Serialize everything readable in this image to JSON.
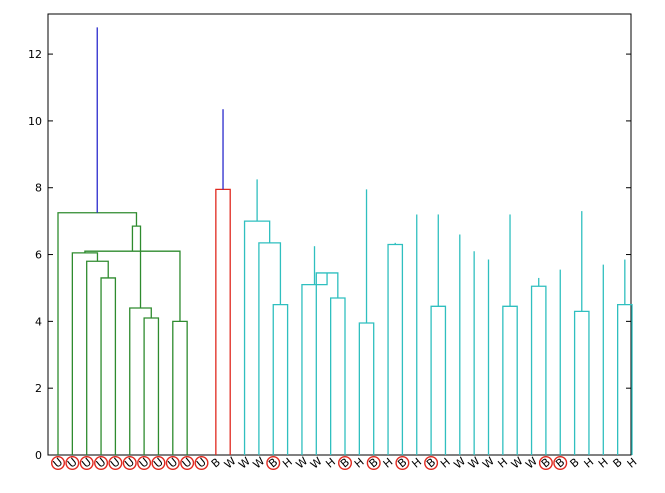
{
  "chart_data": {
    "type": "dendrogram",
    "title": "",
    "xlabel": "",
    "ylabel": "",
    "ylim": [
      0,
      13.2
    ],
    "y_ticks": [
      0,
      2,
      4,
      6,
      8,
      10,
      12
    ],
    "grid": false,
    "leaf_labels": [
      "U",
      "U",
      "U",
      "U",
      "U",
      "U",
      "U",
      "U",
      "U",
      "U",
      "U",
      "B",
      "W",
      "W",
      "W",
      "B",
      "H",
      "W",
      "W",
      "H",
      "B",
      "H",
      "B",
      "H",
      "B",
      "H",
      "B",
      "H",
      "W",
      "W",
      "W",
      "H",
      "W",
      "W",
      "B",
      "B",
      "B",
      "H",
      "H",
      "B",
      "H"
    ],
    "circled_leaves": [
      0,
      1,
      2,
      3,
      4,
      5,
      6,
      7,
      8,
      9,
      10,
      15,
      20,
      22,
      24,
      26,
      34,
      35
    ],
    "cluster_colors": {
      "green": "#2e8b2e",
      "red": "#e0281e",
      "cyan": "#2fbfbf",
      "blue": "#2a2acc",
      "circle": "#e0281e"
    },
    "merges": [
      {
        "a": 8,
        "b": 9,
        "h": 4.0,
        "c": "green"
      },
      {
        "a": 6,
        "b": 7,
        "h": 4.1,
        "c": "green"
      },
      {
        "a": 3,
        "b": 4,
        "h": 5.3,
        "c": "green"
      },
      {
        "a": 2,
        "b": 43,
        "h": 5.8,
        "c": "green"
      },
      {
        "a": 1,
        "b": 44,
        "h": 6.05,
        "c": "green"
      },
      {
        "a": 5,
        "b": 42,
        "h": 4.4,
        "c": "green"
      },
      {
        "a": 45,
        "b": 41,
        "h": 6.1,
        "c": "green"
      },
      {
        "a": 46,
        "b": 47,
        "h": 6.85,
        "c": "green"
      },
      {
        "a": 0,
        "b": 48,
        "h": 7.25,
        "c": "green"
      },
      {
        "a": 11,
        "b": 12,
        "h": 7.95,
        "c": "red"
      },
      {
        "a": 15,
        "b": 16,
        "h": 4.5,
        "c": "cyan"
      },
      {
        "a": 14,
        "b": 51,
        "h": 6.35,
        "c": "cyan"
      },
      {
        "a": 13,
        "b": 52,
        "h": 7.0,
        "c": "cyan"
      },
      {
        "a": 19,
        "b": 20,
        "h": 4.7,
        "c": "cyan"
      },
      {
        "a": 18,
        "b": 54,
        "h": 5.45,
        "c": "cyan"
      },
      {
        "a": 17,
        "b": 55,
        "h": 5.1,
        "c": "cyan"
      },
      {
        "a": 56,
        "b": 57,
        "h": 6.25,
        "c": "cyan"
      },
      {
        "a": 21,
        "b": 22,
        "h": 3.95,
        "c": "cyan"
      },
      {
        "a": 23,
        "b": 24,
        "h": 6.3,
        "c": "cyan"
      },
      {
        "a": 59,
        "b": 60,
        "h": 6.35,
        "c": "cyan"
      },
      {
        "a": 26,
        "b": 27,
        "h": 4.45,
        "c": "cyan"
      },
      {
        "a": 31,
        "b": 32,
        "h": 4.45,
        "c": "cyan"
      },
      {
        "a": 33,
        "b": 34,
        "h": 5.05,
        "c": "cyan"
      },
      {
        "a": 63,
        "b": 64,
        "h": 5.3,
        "c": "cyan"
      },
      {
        "a": 30,
        "b": 65,
        "h": 5.85,
        "c": "cyan"
      },
      {
        "a": 29,
        "b": 66,
        "h": 6.1,
        "c": "cyan"
      },
      {
        "a": 28,
        "b": 67,
        "h": 6.6,
        "c": "cyan"
      },
      {
        "a": 62,
        "b": 68,
        "h": 7.2,
        "c": "cyan"
      },
      {
        "a": 61,
        "b": 69,
        "h": 7.2,
        "c": "cyan"
      },
      {
        "a": 25,
        "b": 70,
        "h": 7.2,
        "c": "cyan"
      },
      {
        "a": 36,
        "b": 37,
        "h": 4.3,
        "c": "cyan"
      },
      {
        "a": 35,
        "b": 72,
        "h": 5.55,
        "c": "cyan"
      },
      {
        "a": 39,
        "b": 40,
        "h": 4.5,
        "c": "cyan"
      },
      {
        "a": 38,
        "b": 74,
        "h": 5.7,
        "c": "cyan"
      },
      {
        "a": 73,
        "b": 75,
        "h": 5.85,
        "c": "cyan"
      },
      {
        "a": 71,
        "b": 76,
        "h": 7.3,
        "c": "cyan"
      },
      {
        "a": 77,
        "b": 78,
        "h": 7.75,
        "c": "cyan"
      },
      {
        "a": 58,
        "b": 79,
        "h": 7.95,
        "c": "cyan"
      },
      {
        "a": 53,
        "b": 80,
        "h": 8.25,
        "c": "cyan"
      },
      {
        "a": 50,
        "b": 81,
        "h": 10.35,
        "c": "blue"
      },
      {
        "a": 49,
        "b": 82,
        "h": 12.8,
        "c": "blue"
      }
    ]
  }
}
